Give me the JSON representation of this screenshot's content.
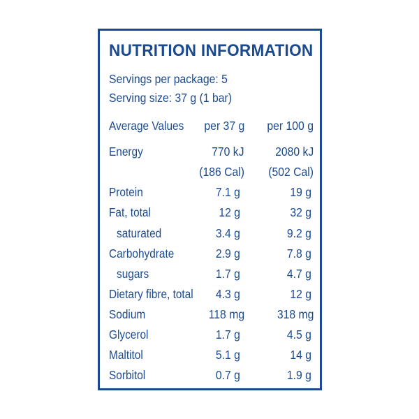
{
  "panel": {
    "title": "NUTRITION INFORMATION",
    "servings_per_package": "Servings per package: 5",
    "serving_size": "Serving size: 37 g (1 bar)"
  },
  "table": {
    "header": {
      "label": "Average Values",
      "col1": "per 37 g",
      "col2": "per 100 g"
    },
    "energy": {
      "label": "Energy",
      "col1_kj": "770 kJ",
      "col2_kj": "2080 kJ",
      "col1_cal": "(186 Cal)",
      "col2_cal": "(502 Cal)"
    },
    "rows": [
      {
        "label": "Protein",
        "col1": "7.1 g",
        "col2": "19 g"
      },
      {
        "label": "Fat, total",
        "col1": "12 g",
        "col2": "32 g"
      },
      {
        "label": "saturated",
        "col1": "3.4 g",
        "col2": "9.2 g"
      },
      {
        "label": "Carbohydrate",
        "col1": "2.9 g",
        "col2": "7.8 g"
      },
      {
        "label": "sugars",
        "col1": "1.7 g",
        "col2": "4.7 g"
      },
      {
        "label": "Dietary fibre, total",
        "col1": "4.3 g",
        "col2": "12 g"
      },
      {
        "label": "Sodium",
        "col1": "118 mg",
        "col2": "318 mg"
      },
      {
        "label": "Glycerol",
        "col1": "1.7 g",
        "col2": "4.5 g"
      },
      {
        "label": "Maltitol",
        "col1": "5.1 g",
        "col2": "14 g"
      },
      {
        "label": "Sorbitol",
        "col1": "0.7 g",
        "col2": "1.9 g"
      }
    ]
  },
  "colors": {
    "ink": "#1b4a8f",
    "background": "#ffffff"
  }
}
